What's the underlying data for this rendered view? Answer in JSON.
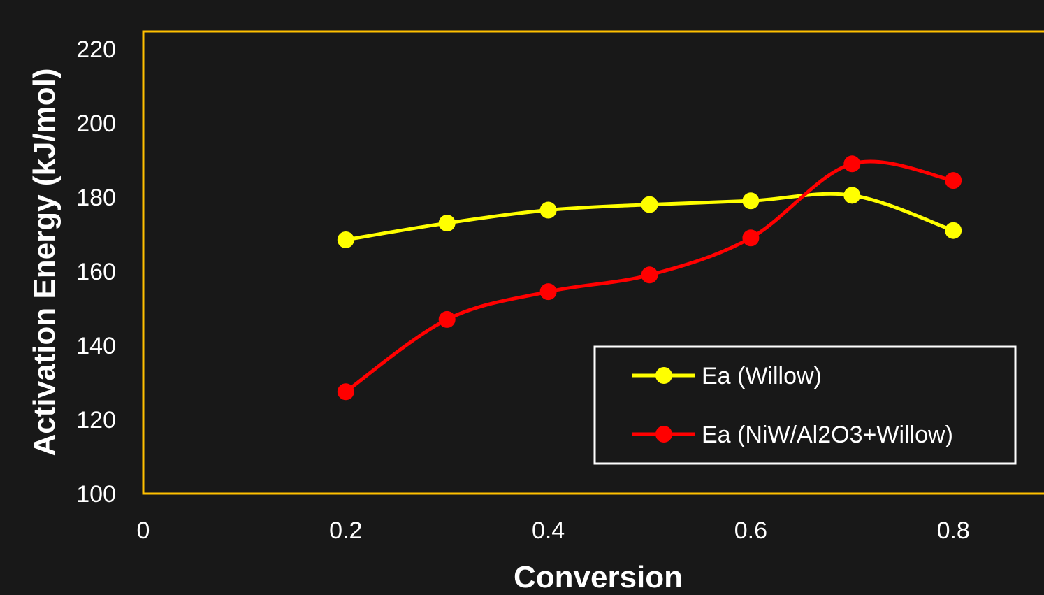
{
  "chart_data": {
    "type": "line",
    "title": "",
    "xlabel": "Conversion",
    "ylabel": "Activation Energy (kJ/mol)",
    "xlim": [
      0,
      0.9
    ],
    "ylim": [
      100,
      225
    ],
    "xticks": [
      0,
      0.2,
      0.4,
      0.6,
      0.8
    ],
    "xtick_labels": [
      "0",
      "0.2",
      "0.4",
      "0.6",
      "0.8"
    ],
    "yticks": [
      100,
      120,
      140,
      160,
      180,
      200,
      220
    ],
    "ytick_labels": [
      "100",
      "120",
      "140",
      "160",
      "180",
      "200",
      "220"
    ],
    "grid": false,
    "legend_position": "bottom-right",
    "series": [
      {
        "name": "Ea (Willow)",
        "color": "#ffff00",
        "x": [
          0.2,
          0.3,
          0.4,
          0.5,
          0.6,
          0.7,
          0.8
        ],
        "y": [
          168.5,
          173,
          176.5,
          178,
          179,
          180.5,
          171
        ]
      },
      {
        "name": "Ea (NiW/Al2O3+Willow)",
        "color": "#ff0000",
        "x": [
          0.2,
          0.3,
          0.4,
          0.5,
          0.6,
          0.7,
          0.8
        ],
        "y": [
          127.5,
          147,
          154.5,
          159,
          169,
          189,
          184.5
        ]
      }
    ],
    "colors": {
      "background": "#181818",
      "plot_border": "#ffc000",
      "legend_border": "#ffffff",
      "text": "#ffffff"
    }
  }
}
